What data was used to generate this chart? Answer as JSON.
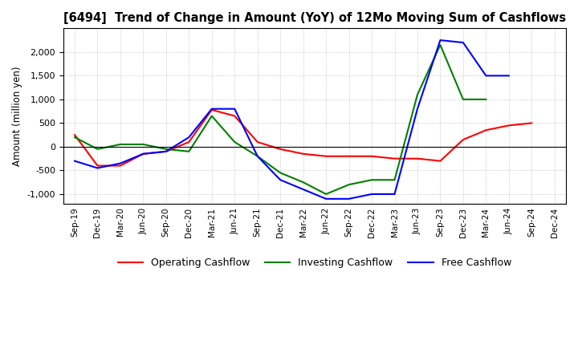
{
  "title": "[6494]  Trend of Change in Amount (YoY) of 12Mo Moving Sum of Cashflows",
  "ylabel": "Amount (million yen)",
  "x_labels": [
    "Sep-19",
    "Dec-19",
    "Mar-20",
    "Jun-20",
    "Sep-20",
    "Dec-20",
    "Mar-21",
    "Jun-21",
    "Sep-21",
    "Dec-21",
    "Mar-22",
    "Jun-22",
    "Sep-22",
    "Dec-22",
    "Mar-23",
    "Jun-23",
    "Sep-23",
    "Dec-23",
    "Mar-24",
    "Jun-24",
    "Sep-24",
    "Dec-24"
  ],
  "operating": [
    250,
    -400,
    -400,
    -150,
    -100,
    100,
    780,
    650,
    100,
    -50,
    -150,
    -200,
    -200,
    -200,
    -250,
    -250,
    -300,
    150,
    350,
    450,
    500,
    null
  ],
  "investing": [
    200,
    -50,
    50,
    50,
    -50,
    -100,
    650,
    100,
    -200,
    -550,
    -750,
    -1000,
    -800,
    -700,
    -700,
    1100,
    2150,
    1000,
    1000,
    null,
    null,
    null
  ],
  "free": [
    -300,
    -450,
    -350,
    -150,
    -100,
    200,
    800,
    800,
    -200,
    -700,
    -900,
    -1100,
    -1100,
    -1000,
    -1000,
    800,
    2250,
    2200,
    1500,
    1500,
    null,
    null
  ],
  "ylim": [
    -1200,
    2500
  ],
  "yticks": [
    -1000,
    -500,
    0,
    500,
    1000,
    1500,
    2000
  ],
  "colors": {
    "operating": "#ff0000",
    "investing": "#008000",
    "free": "#0000ff"
  },
  "legend_labels": [
    "Operating Cashflow",
    "Investing Cashflow",
    "Free Cashflow"
  ],
  "background_color": "#ffffff",
  "grid_color": "#aaaaaa"
}
